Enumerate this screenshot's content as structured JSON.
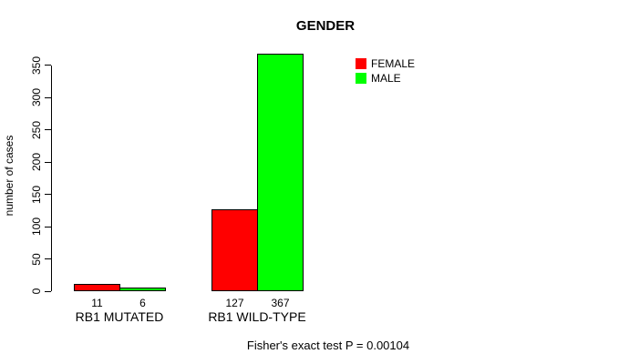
{
  "chart_data": {
    "type": "bar",
    "title": "GENDER",
    "ylabel": "number of cases",
    "xlabel": "",
    "categories": [
      "RB1 MUTATED",
      "RB1 WILD-TYPE"
    ],
    "series": [
      {
        "name": "FEMALE",
        "color": "#ff0000",
        "values": [
          11,
          127
        ]
      },
      {
        "name": "MALE",
        "color": "#00ff00",
        "values": [
          6,
          367
        ]
      }
    ],
    "bar_value_labels": [
      [
        11,
        6
      ],
      [
        127,
        367
      ]
    ],
    "ylim": [
      0,
      350
    ],
    "yticks": [
      0,
      50,
      100,
      150,
      200,
      250,
      300,
      350
    ],
    "grid": false,
    "legend_position": "top-right",
    "footnote": "Fisher's exact test P = 0.00104"
  },
  "colors": {
    "axis": "#000000",
    "text": "#000000",
    "background": "#ffffff"
  }
}
